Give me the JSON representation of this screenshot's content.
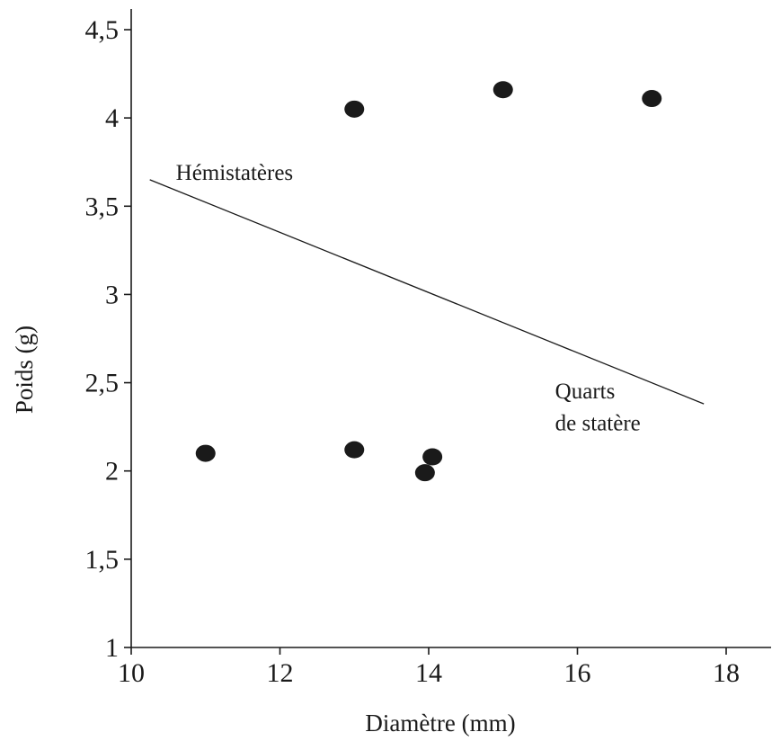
{
  "chart_data": {
    "type": "scatter",
    "xlabel": "Diamètre (mm)",
    "ylabel": "Poids (g)",
    "xlim": [
      10,
      18
    ],
    "ylim": [
      1,
      4.5
    ],
    "x_ticks": [
      10,
      12,
      14,
      16,
      18
    ],
    "y_ticks": [
      1,
      1.5,
      2,
      2.5,
      3,
      3.5,
      4,
      4.5
    ],
    "x_tick_labels": [
      "10",
      "12",
      "14",
      "16",
      "18"
    ],
    "y_tick_labels": [
      "1",
      "1,5",
      "2",
      "2,5",
      "3",
      "3,5",
      "4",
      "4,5"
    ],
    "points": [
      {
        "x": 11.0,
        "y": 2.1
      },
      {
        "x": 13.0,
        "y": 2.12
      },
      {
        "x": 13.95,
        "y": 1.99
      },
      {
        "x": 14.05,
        "y": 2.08
      },
      {
        "x": 13.0,
        "y": 4.05
      },
      {
        "x": 15.0,
        "y": 4.16
      },
      {
        "x": 17.0,
        "y": 4.11
      }
    ],
    "separator_line": {
      "x": [
        10.25,
        17.7
      ],
      "y": [
        3.65,
        2.38
      ]
    },
    "annotations": [
      {
        "text": "Hémistatères",
        "x": 10.6,
        "y": 3.65
      },
      {
        "text": "Quarts",
        "x": 15.7,
        "y": 2.41
      },
      {
        "text": "de statère",
        "x": 15.7,
        "y": 2.23
      }
    ],
    "grid": false,
    "legend": "none"
  }
}
